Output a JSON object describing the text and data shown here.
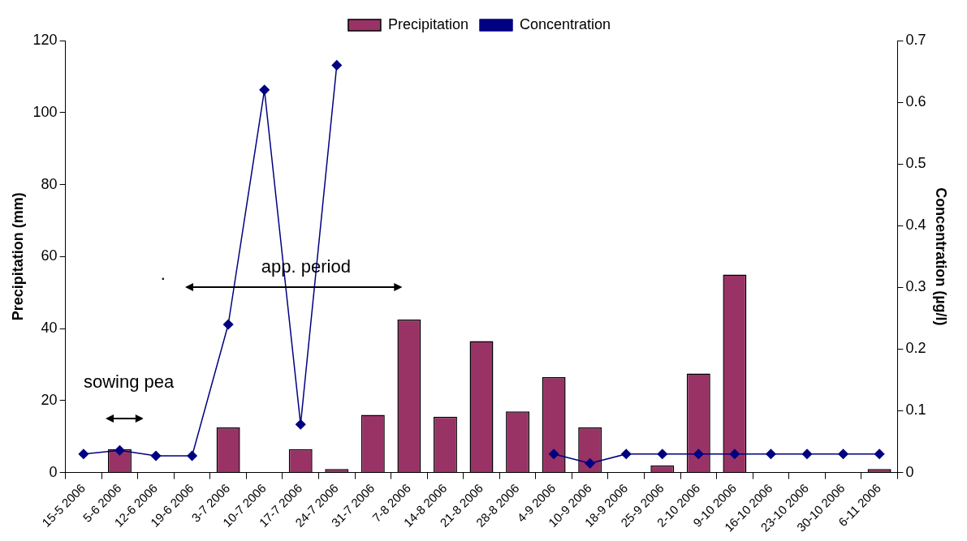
{
  "chart_data": {
    "type": "bar",
    "categories": [
      "15-5 2006",
      "5-6 2006",
      "12-6 2006",
      "19-6 2006",
      "3-7 2006",
      "10-7 2006",
      "17-7 2006",
      "24-7 2006",
      "31-7 2006",
      "7-8 2006",
      "14-8 2006",
      "21-8 2006",
      "28-8 2006",
      "4-9 2006",
      "10-9 2006",
      "18-9 2006",
      "25-9 2006",
      "2-10 2006",
      "9-10 2006",
      "16-10 2006",
      "23-10 2006",
      "30-10 2006",
      "6-11 2006"
    ],
    "series": [
      {
        "name": "Precipitation",
        "color": "#993366",
        "values": [
          null,
          6.5,
          null,
          null,
          12.5,
          null,
          6.5,
          1,
          16,
          42.5,
          15.5,
          36.5,
          17,
          26.5,
          12.5,
          null,
          2,
          27.5,
          55,
          null,
          null,
          null,
          1
        ]
      },
      {
        "name": "Concentration",
        "type": "line",
        "axis": "y2",
        "color": "#000080",
        "marker": "diamond",
        "values": [
          0.03,
          0.036,
          0.027,
          0.027,
          0.24,
          0.62,
          0.078,
          0.66,
          null,
          null,
          null,
          null,
          null,
          0.03,
          0.015,
          0.03,
          0.03,
          0.03,
          0.03,
          0.03,
          0.03,
          0.03,
          0.03
        ]
      }
    ],
    "ylabel": "Precipitation (mm)",
    "y2label": "Concentration (µg/l)",
    "ylim": [
      0,
      120
    ],
    "yticks": [
      0,
      20,
      40,
      60,
      80,
      100,
      120
    ],
    "y2lim": [
      0,
      0.7
    ],
    "y2ticks": [
      0,
      0.1,
      0.2,
      0.3,
      0.4,
      0.5,
      0.6,
      0.7
    ],
    "legend": "top",
    "grid": false,
    "annotations": [
      "sowing pea",
      "app. period",
      "."
    ]
  }
}
